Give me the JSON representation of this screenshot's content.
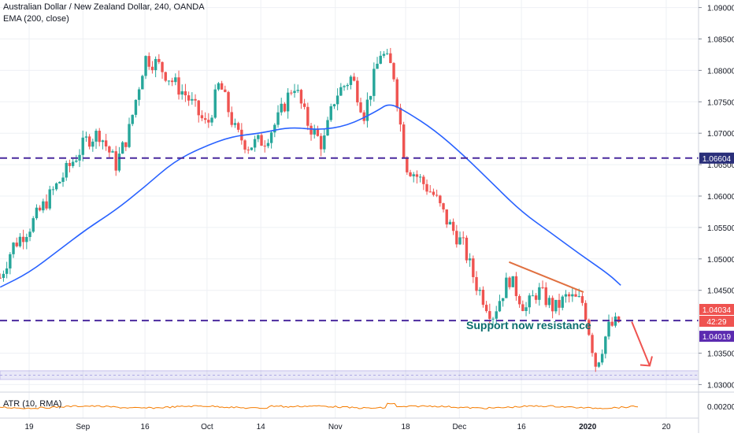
{
  "header": {
    "title": "Australian Dollar / New Zealand Dollar, 240, OANDA",
    "indicator": "EMA (200, close)"
  },
  "atr": {
    "label": "ATR (10, RMA)",
    "tick": "0.00200"
  },
  "annotation": {
    "text": "Support now resistance"
  },
  "colors": {
    "bull": "#26a69a",
    "bear": "#ef5350",
    "ema": "#2962ff",
    "level": "#4a2a9e",
    "trendline": "#e07040",
    "atr": "#f57c00",
    "annotation": "#0b6e6e"
  },
  "chart_data": {
    "type": "candlestick",
    "title": "Australian Dollar / New Zealand Dollar, 240, OANDA",
    "y_axis": {
      "range": [
        1.0288,
        1.0912
      ],
      "ticks": [
        "1.09000",
        "1.08500",
        "1.08000",
        "1.07500",
        "1.07000",
        "1.06500",
        "1.06000",
        "1.05500",
        "1.05000",
        "1.04500",
        "1.03500",
        "1.03000"
      ]
    },
    "x_axis": {
      "ticks": [
        "19",
        "Sep",
        "16",
        "Oct",
        "14",
        "Nov",
        "18",
        "Dec",
        "16",
        "2020",
        "20"
      ]
    },
    "price_labels": [
      {
        "text": "1.06604",
        "value": 1.06604
      },
      {
        "text": "1.04034",
        "value": 1.04034
      },
      {
        "text": "42:29",
        "value": 1.0389
      },
      {
        "text": "1.04019",
        "value": 1.04019
      }
    ],
    "horizontal_levels": [
      {
        "value": 1.06604,
        "style": "dashed"
      },
      {
        "value": 1.04019,
        "style": "dashed"
      }
    ],
    "support_zone": {
      "from": 1.0308,
      "to": 1.0322
    },
    "trendline": {
      "from_date": "Dec 13",
      "from_price": 1.0495,
      "to_date": "Dec 31",
      "to_price": 1.0447
    },
    "ema_200": [
      [
        "Aug 12",
        1.0455
      ],
      [
        "Aug 19",
        1.0478
      ],
      [
        "Aug 26",
        1.0513
      ],
      [
        "Sep 2",
        1.0548
      ],
      [
        "Sep 9",
        1.0578
      ],
      [
        "Sep 16",
        1.0615
      ],
      [
        "Sep 23",
        1.0655
      ],
      [
        "Sep 30",
        1.0678
      ],
      [
        "Oct 7",
        1.0695
      ],
      [
        "Oct 14",
        1.07
      ],
      [
        "Oct 21",
        1.071
      ],
      [
        "Oct 28",
        1.0705
      ],
      [
        "Nov 4",
        1.0712
      ],
      [
        "Nov 11",
        1.0735
      ],
      [
        "Nov 14",
        1.0748
      ],
      [
        "Nov 18",
        1.0735
      ],
      [
        "Nov 25",
        1.0705
      ],
      [
        "Dec 2",
        1.0665
      ],
      [
        "Dec 9",
        1.062
      ],
      [
        "Dec 16",
        1.0575
      ],
      [
        "Dec 23",
        1.0542
      ],
      [
        "Dec 30",
        1.0508
      ],
      [
        "Jan 6",
        1.0476
      ],
      [
        "Jan 9",
        1.0458
      ]
    ],
    "price_path": [
      [
        "Aug 12",
        1.047
      ],
      [
        "Aug 15",
        1.052
      ],
      [
        "Aug 19",
        1.055
      ],
      [
        "Aug 22",
        1.058
      ],
      [
        "Aug 26",
        1.062
      ],
      [
        "Aug 29",
        1.065
      ],
      [
        "Sep 2",
        1.069
      ],
      [
        "Sep 5",
        1.07
      ],
      [
        "Sep 9",
        1.065
      ],
      [
        "Sep 12",
        1.07
      ],
      [
        "Sep 16",
        1.082
      ],
      [
        "Sep 19",
        1.081
      ],
      [
        "Sep 23",
        1.078
      ],
      [
        "Sep 26",
        1.076
      ],
      [
        "Oct 1",
        1.071
      ],
      [
        "Oct 4",
        1.078
      ],
      [
        "Oct 8",
        1.07
      ],
      [
        "Oct 11",
        1.068
      ],
      [
        "Oct 15",
        1.069
      ],
      [
        "Oct 18",
        1.072
      ],
      [
        "Oct 22",
        1.078
      ],
      [
        "Oct 25",
        1.072
      ],
      [
        "Oct 29",
        1.068
      ],
      [
        "Nov 1",
        1.076
      ],
      [
        "Nov 5",
        1.079
      ],
      [
        "Nov 8",
        1.073
      ],
      [
        "Nov 12",
        1.083
      ],
      [
        "Nov 15",
        1.08
      ],
      [
        "Nov 18",
        1.065
      ],
      [
        "Nov 21",
        1.063
      ],
      [
        "Nov 25",
        1.06
      ],
      [
        "Nov 28",
        1.056
      ],
      [
        "Dec 2",
        1.052
      ],
      [
        "Dec 5",
        1.046
      ],
      [
        "Dec 9",
        1.041
      ],
      [
        "Dec 13",
        1.047
      ],
      [
        "Dec 17",
        1.042
      ],
      [
        "Dec 20",
        1.045
      ],
      [
        "Dec 24",
        1.042
      ],
      [
        "Dec 27",
        1.044
      ],
      [
        "Dec 31",
        1.043
      ],
      [
        "Jan 3",
        1.033
      ],
      [
        "Jan 6",
        1.039
      ],
      [
        "Jan 9",
        1.0402
      ]
    ],
    "projection": {
      "direction": "down",
      "to_date": "Jan 16",
      "to_price": 1.033
    }
  }
}
